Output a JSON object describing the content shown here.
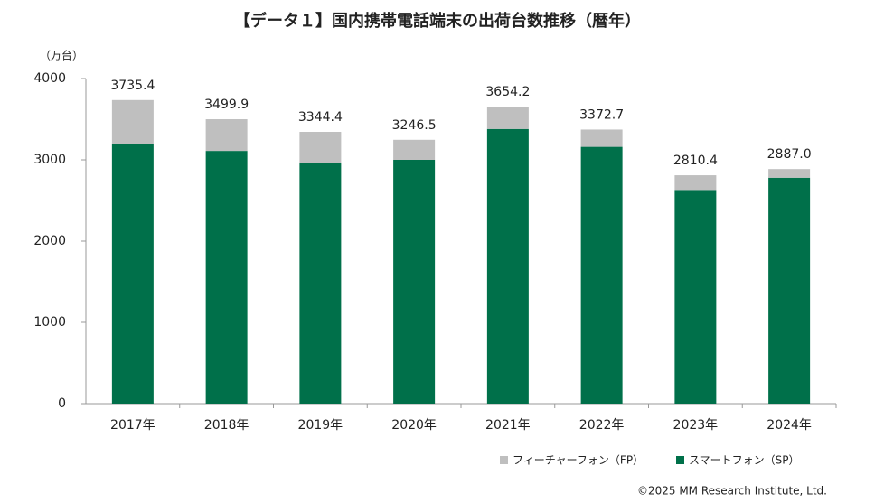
{
  "chart_data": {
    "type": "stacked_bar",
    "title": "【データ１】国内携帯電話端末の出荷台数推移（暦年）",
    "y_label": "（万台）",
    "credit": "©2025 MM Research Institute, Ltd.",
    "categories": [
      "2017年",
      "2018年",
      "2019年",
      "2020年",
      "2021年",
      "2022年",
      "2023年",
      "2024年"
    ],
    "series": [
      {
        "name": "スマートフォン（SP）",
        "color": "#00704a",
        "values": [
          3200,
          3110,
          2960,
          3000,
          3380,
          3160,
          2630,
          2780
        ]
      },
      {
        "name": "フィーチャーフォン（FP）",
        "color": "#bfbfbf",
        "values": [
          535.4,
          389.9,
          384.4,
          246.5,
          274.2,
          212.7,
          180.4,
          107.0
        ]
      }
    ],
    "totals": [
      3735.4,
      3499.9,
      3344.4,
      3246.5,
      3654.2,
      3372.7,
      2810.4,
      2887.0
    ],
    "total_labels": [
      "3735.4",
      "3499.9",
      "3344.4",
      "3246.5",
      "3654.2",
      "3372.7",
      "2810.4",
      "2887.0"
    ],
    "ylim": [
      0,
      4000
    ],
    "yticks": [
      0,
      1000,
      2000,
      3000,
      4000
    ],
    "grid": false
  }
}
